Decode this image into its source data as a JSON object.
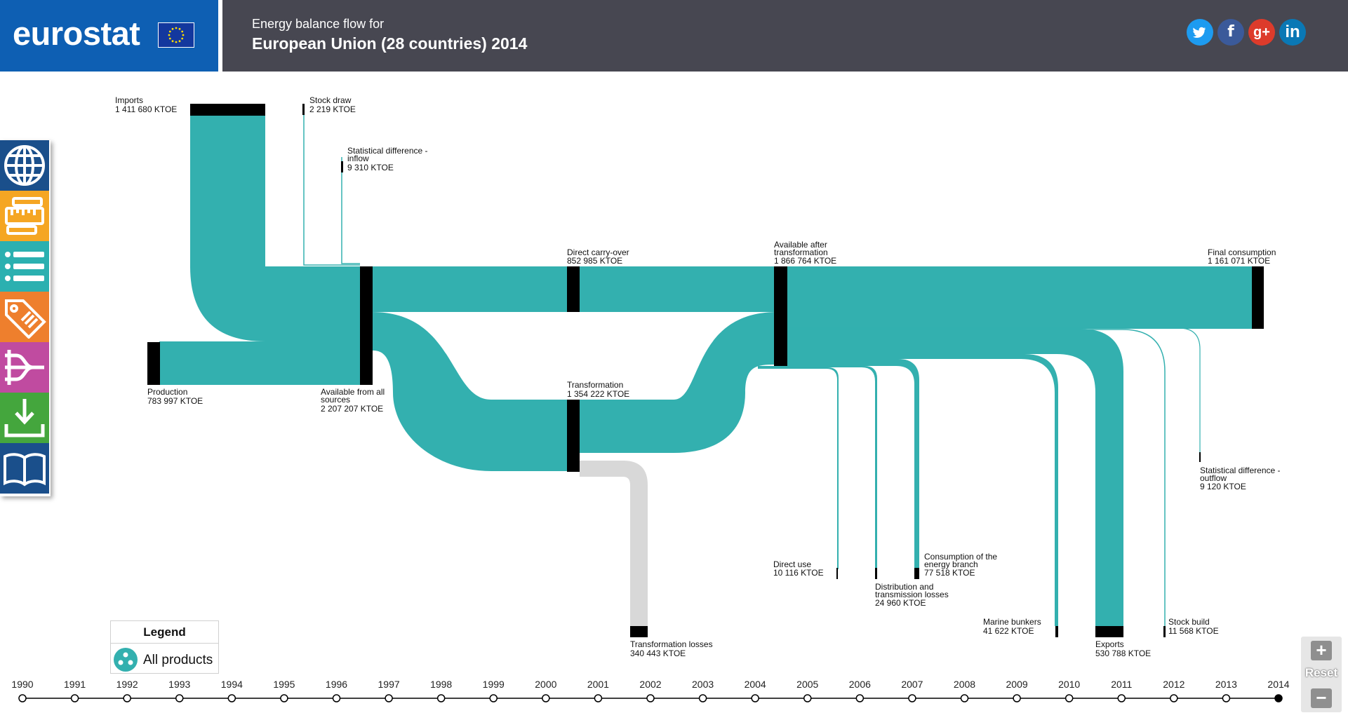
{
  "header": {
    "logo_text": "eurostat",
    "title_line1": "Energy balance flow for",
    "title_line2": "European Union (28 countries) 2014",
    "share": {
      "twitter": "t",
      "facebook": "f",
      "googleplus": "g+",
      "linkedin": "in"
    }
  },
  "sidebar": {
    "items": [
      {
        "icon": "globe-icon",
        "color": "#1a4f8b"
      },
      {
        "icon": "ruler-icon",
        "color": "#f5a623"
      },
      {
        "icon": "list-icon",
        "color": "#2bb0b0"
      },
      {
        "icon": "tag-icon",
        "color": "#ee7f2d"
      },
      {
        "icon": "flow-icon",
        "color": "#c04ba0"
      },
      {
        "icon": "download-icon",
        "color": "#44a63d"
      },
      {
        "icon": "book-icon",
        "color": "#1a4f8b"
      }
    ]
  },
  "sankey": {
    "flow_color": "#33b0af",
    "loss_color": "#d8d8d8",
    "nodes": {
      "imports": {
        "name": "Imports",
        "value": "1 411 680 KTOE"
      },
      "stock_draw": {
        "name": "Stock draw",
        "value": "2 219 KTOE"
      },
      "stat_diff_inflow": {
        "name_line1": "Statistical difference -",
        "name_line2": "inflow",
        "value": "9 310 KTOE"
      },
      "production": {
        "name": "Production",
        "value": "783 997 KTOE"
      },
      "available_all": {
        "name_line1": "Available from all",
        "name_line2": "sources",
        "value": "2 207 207 KTOE"
      },
      "direct_carry_over": {
        "name": "Direct carry-over",
        "value": "852 985 KTOE"
      },
      "transformation": {
        "name": "Transformation",
        "value": "1 354 222 KTOE"
      },
      "transformation_losses": {
        "name": "Transformation losses",
        "value": "340 443 KTOE"
      },
      "available_after": {
        "name_line1": "Available after",
        "name_line2": "transformation",
        "value": "1 866 764 KTOE"
      },
      "final_consumption": {
        "name": "Final consumption",
        "value": "1 161 071 KTOE"
      },
      "stat_diff_outflow": {
        "name_line1": "Statistical difference -",
        "name_line2": "outflow",
        "value": "9 120 KTOE"
      },
      "direct_use": {
        "name": "Direct use",
        "value": "10 116 KTOE"
      },
      "distribution_losses": {
        "name_line1": "Distribution and",
        "name_line2": "transmission losses",
        "value": "24 960 KTOE"
      },
      "energy_branch": {
        "name_line1": "Consumption of the",
        "name_line2": "energy branch",
        "value": "77 518 KTOE"
      },
      "marine_bunkers": {
        "name": "Marine bunkers",
        "value": "41 622 KTOE"
      },
      "exports": {
        "name": "Exports",
        "value": "530 788 KTOE"
      },
      "stock_build": {
        "name": "Stock build",
        "value": "11 568 KTOE"
      }
    }
  },
  "legend": {
    "title": "Legend",
    "item": "All products"
  },
  "timeline": {
    "years": [
      "1990",
      "1991",
      "1992",
      "1993",
      "1994",
      "1995",
      "1996",
      "1997",
      "1998",
      "1999",
      "2000",
      "2001",
      "2002",
      "2003",
      "2004",
      "2005",
      "2006",
      "2007",
      "2008",
      "2009",
      "2010",
      "2011",
      "2012",
      "2013",
      "2014"
    ],
    "selected": "2014"
  },
  "zoom": {
    "in": "+",
    "reset": "Reset",
    "out": "−"
  }
}
